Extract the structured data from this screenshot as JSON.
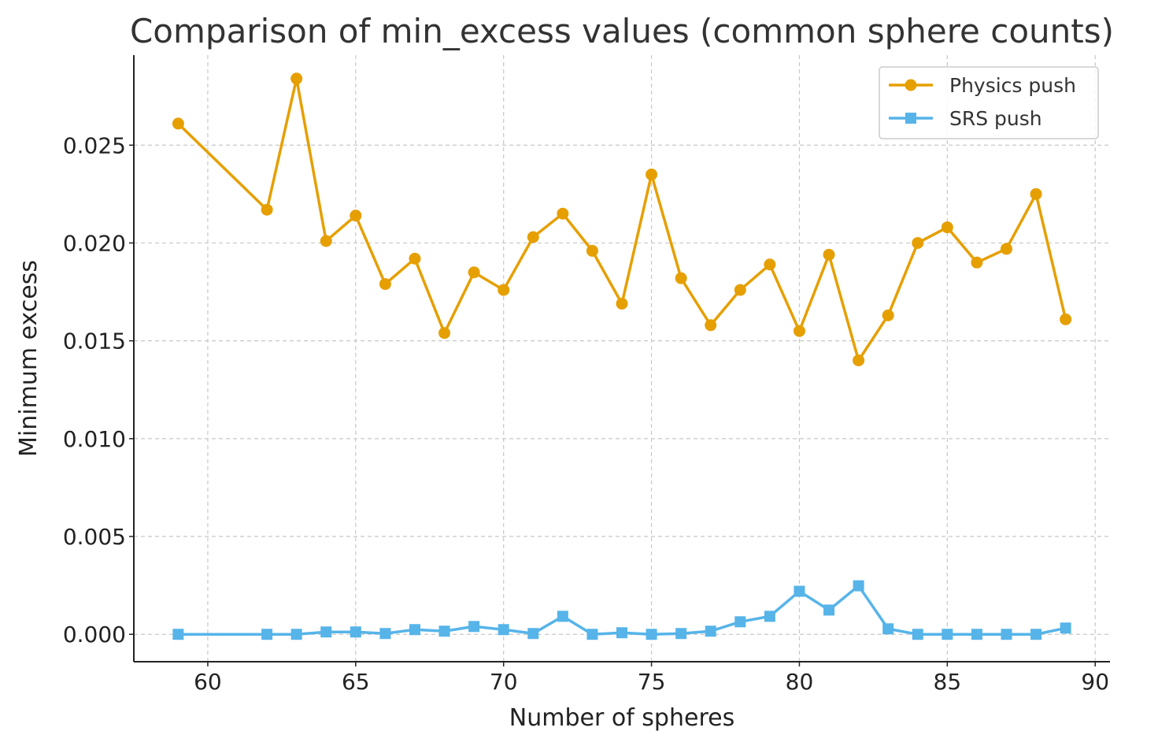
{
  "chart_data": {
    "type": "line",
    "title": "Comparison of min_excess values (common sphere counts)",
    "xlabel": "Number of spheres",
    "ylabel": "Minimum excess",
    "xlim": [
      57.5,
      90.5
    ],
    "ylim": [
      -0.0014,
      0.0296
    ],
    "xticks": [
      60,
      65,
      70,
      75,
      80,
      85,
      90
    ],
    "xtick_labels": [
      "60",
      "65",
      "70",
      "75",
      "80",
      "85",
      "90"
    ],
    "yticks": [
      0.0,
      0.005,
      0.01,
      0.015,
      0.02,
      0.025
    ],
    "ytick_labels": [
      "0.000",
      "0.005",
      "0.010",
      "0.015",
      "0.020",
      "0.025"
    ],
    "grid": true,
    "legend_position": "top-right",
    "x": [
      59,
      62,
      63,
      64,
      65,
      66,
      67,
      68,
      69,
      70,
      71,
      72,
      73,
      74,
      75,
      76,
      77,
      78,
      79,
      80,
      81,
      82,
      83,
      84,
      85,
      86,
      87,
      88,
      89
    ],
    "series": [
      {
        "name": "Physics push",
        "color": "#E69F00",
        "marker": "circle",
        "values": [
          0.0261,
          0.0217,
          0.0284,
          0.0201,
          0.0214,
          0.0179,
          0.0192,
          0.0154,
          0.0185,
          0.0176,
          0.0203,
          0.0215,
          0.0196,
          0.0169,
          0.0235,
          0.0182,
          0.0158,
          0.0176,
          0.0189,
          0.0155,
          0.0194,
          0.014,
          0.0163,
          0.02,
          0.0208,
          0.019,
          0.0197,
          0.0225,
          0.0161
        ]
      },
      {
        "name": "SRS push",
        "color": "#56B4E9",
        "marker": "square",
        "values": [
          0.0,
          0.0,
          0.0,
          0.00012,
          0.00012,
          4e-05,
          0.00024,
          0.00016,
          0.0004,
          0.00024,
          4e-05,
          0.00092,
          0.0,
          8e-05,
          0.0,
          4e-05,
          0.00016,
          0.00064,
          0.00092,
          0.0022,
          0.00124,
          0.00248,
          0.00028,
          0.0,
          0.0,
          0.0,
          0.0,
          0.0,
          0.00032
        ]
      }
    ]
  }
}
